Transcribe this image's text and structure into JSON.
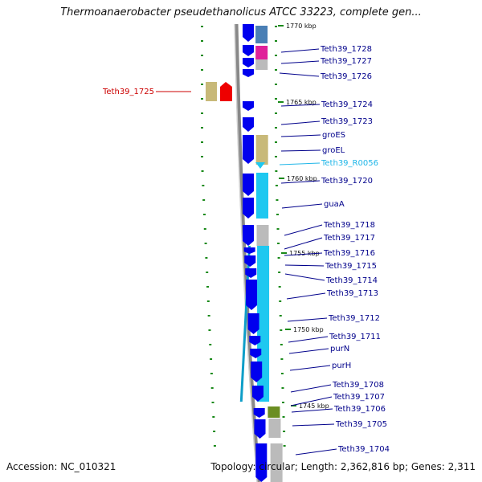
{
  "title": "Thermoanaerobacter pseudethanolicus ATCC 33223, complete gen...",
  "footer": {
    "accession": "Accession: NC_010321",
    "topology": "Topology: circular; Length: 2,362,816 bp; Genes: 2,311"
  },
  "colors": {
    "forward_gene": "#0000ee",
    "backbone": "#888888",
    "label_default": "#00008b",
    "label_rna": "#1fb6e8",
    "label_reverse": "#cc0000",
    "tick_mark": "#1a8a1a",
    "cog_steelblue": "#4a7fb5",
    "cog_magenta": "#e0209a",
    "cog_gray": "#bbbbbb",
    "cog_khaki": "#c8b979",
    "cog_cyan": "#1ec8f0",
    "cog_olive": "#6b8e23",
    "reverse_gene": "#ee0000"
  },
  "kbp_marks": [
    "1770 kbp",
    "1765 kbp",
    "1760 kbp",
    "1755 kbp",
    "1750 kbp",
    "1745 kbp"
  ],
  "gene_labels": [
    {
      "name": "Teth39_1728",
      "type": "cds"
    },
    {
      "name": "Teth39_1727",
      "type": "cds"
    },
    {
      "name": "Teth39_1726",
      "type": "cds"
    },
    {
      "name": "Teth39_1725",
      "type": "reverse"
    },
    {
      "name": "Teth39_1724",
      "type": "cds"
    },
    {
      "name": "Teth39_1723",
      "type": "cds"
    },
    {
      "name": "groES",
      "type": "cds"
    },
    {
      "name": "groEL",
      "type": "cds"
    },
    {
      "name": "Teth39_R0056",
      "type": "rna"
    },
    {
      "name": "Teth39_1720",
      "type": "cds"
    },
    {
      "name": "guaA",
      "type": "cds"
    },
    {
      "name": "Teth39_1718",
      "type": "cds"
    },
    {
      "name": "Teth39_1717",
      "type": "cds"
    },
    {
      "name": "Teth39_1716",
      "type": "cds"
    },
    {
      "name": "Teth39_1715",
      "type": "cds"
    },
    {
      "name": "Teth39_1714",
      "type": "cds"
    },
    {
      "name": "Teth39_1713",
      "type": "cds"
    },
    {
      "name": "Teth39_1712",
      "type": "cds"
    },
    {
      "name": "Teth39_1711",
      "type": "cds"
    },
    {
      "name": "purN",
      "type": "cds"
    },
    {
      "name": "purH",
      "type": "cds"
    },
    {
      "name": "Teth39_1708",
      "type": "cds"
    },
    {
      "name": "Teth39_1707",
      "type": "cds"
    },
    {
      "name": "Teth39_1706",
      "type": "cds"
    },
    {
      "name": "Teth39_1705",
      "type": "cds"
    },
    {
      "name": "Teth39_1704",
      "type": "cds"
    }
  ]
}
